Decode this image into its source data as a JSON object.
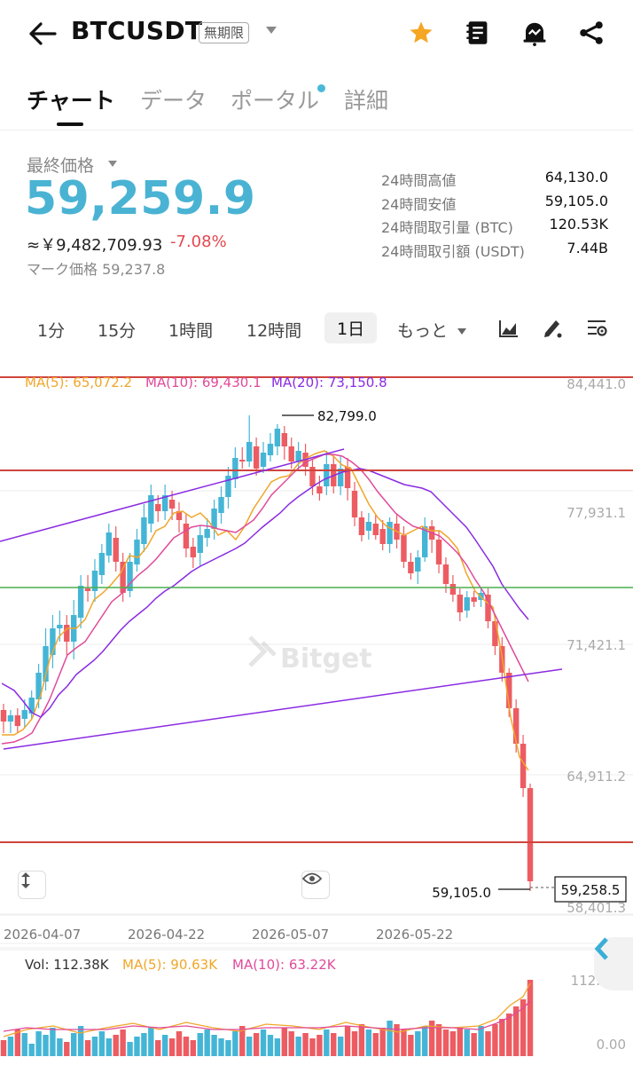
{
  "header": {
    "symbol": "BTCUSDT",
    "badge": "無期限"
  },
  "tabs": [
    {
      "label": "チャート"
    },
    {
      "label": "データ"
    },
    {
      "label": "ポータル"
    },
    {
      "label": "詳細"
    }
  ],
  "price": {
    "last_label": "最終価格",
    "last": "59,259.9",
    "yen": "≈￥9,482,709.93",
    "change": "-7.08%",
    "mark": "マーク価格 59,237.8"
  },
  "stats": [
    {
      "label": "24時間高値",
      "value": "64,130.0"
    },
    {
      "label": "24時間安値",
      "value": "59,105.0"
    },
    {
      "label": "24時間取引量 (BTC)",
      "value": "120.53K"
    },
    {
      "label": "24時間取引額 (USDT)",
      "value": "7.44B"
    }
  ],
  "intervals": [
    "1分",
    "15分",
    "1時間",
    "12時間",
    "1日",
    "もっと"
  ],
  "chart": {
    "ma5": "MA(5): 65,072.2",
    "ma10": "MA(10): 69,430.1",
    "ma20": "MA(20): 73,150.8",
    "price_axis": [
      "84,441.0",
      "77,931.1",
      "71,421.1",
      "64,911.2",
      "58,401.3"
    ],
    "high_label": "82,799.0",
    "low_label": "59,105.0",
    "current_label": "59,258.5",
    "date_axis": [
      "2026-04-07",
      "2026-04-22",
      "2026-05-07",
      "2026-05-22"
    ],
    "watermark": "Bitget",
    "colors": {
      "up": "#45b5d6",
      "down": "#ec5c62",
      "ma5": "#f0a629",
      "ma10": "#e04a9a",
      "ma20": "#8a2be2"
    }
  },
  "volume": {
    "vol": "Vol: 112.38K",
    "ma5": "MA(5): 90.63K",
    "ma10": "MA(10): 63.22K",
    "axis_top": "112.38K",
    "axis_bottom": "0.00"
  }
}
